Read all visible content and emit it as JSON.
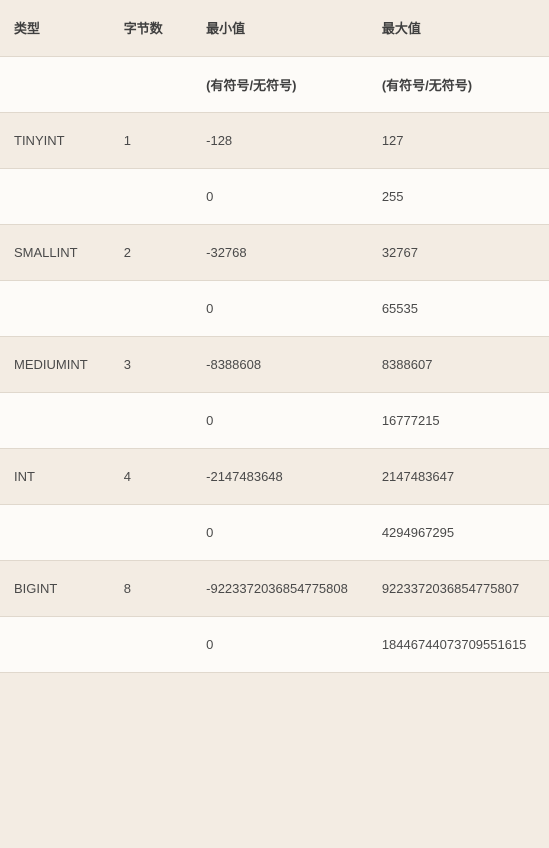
{
  "table": {
    "headers": {
      "type": "类型",
      "bytes": "字节数",
      "min": "最小值",
      "max": "最大值"
    },
    "subheader": {
      "signed_unsigned": "(有符号/无符号)"
    },
    "rows": [
      {
        "type": "TINYINT",
        "bytes": "1",
        "min_signed": "-128",
        "max_signed": "127",
        "min_unsigned": "0",
        "max_unsigned": "255"
      },
      {
        "type": "SMALLINT",
        "bytes": "2",
        "min_signed": "-32768",
        "max_signed": "32767",
        "min_unsigned": "0",
        "max_unsigned": "65535"
      },
      {
        "type": "MEDIUMINT",
        "bytes": "3",
        "min_signed": "-8388608",
        "max_signed": "8388607",
        "min_unsigned": "0",
        "max_unsigned": "16777215"
      },
      {
        "type": "INT",
        "bytes": "4",
        "min_signed": "-2147483648",
        "max_signed": "2147483647",
        "min_unsigned": "0",
        "max_unsigned": "4294967295"
      },
      {
        "type": "BIGINT",
        "bytes": "8",
        "min_signed": "-9223372036854775808",
        "max_signed": "9223372036854775807",
        "min_unsigned": "0",
        "max_unsigned": "18446744073709551615"
      }
    ],
    "colors": {
      "background": "#f3ece3",
      "alt_background": "#fdfbf8",
      "border": "#e0d8cd",
      "text": "#4a4a4a"
    }
  }
}
